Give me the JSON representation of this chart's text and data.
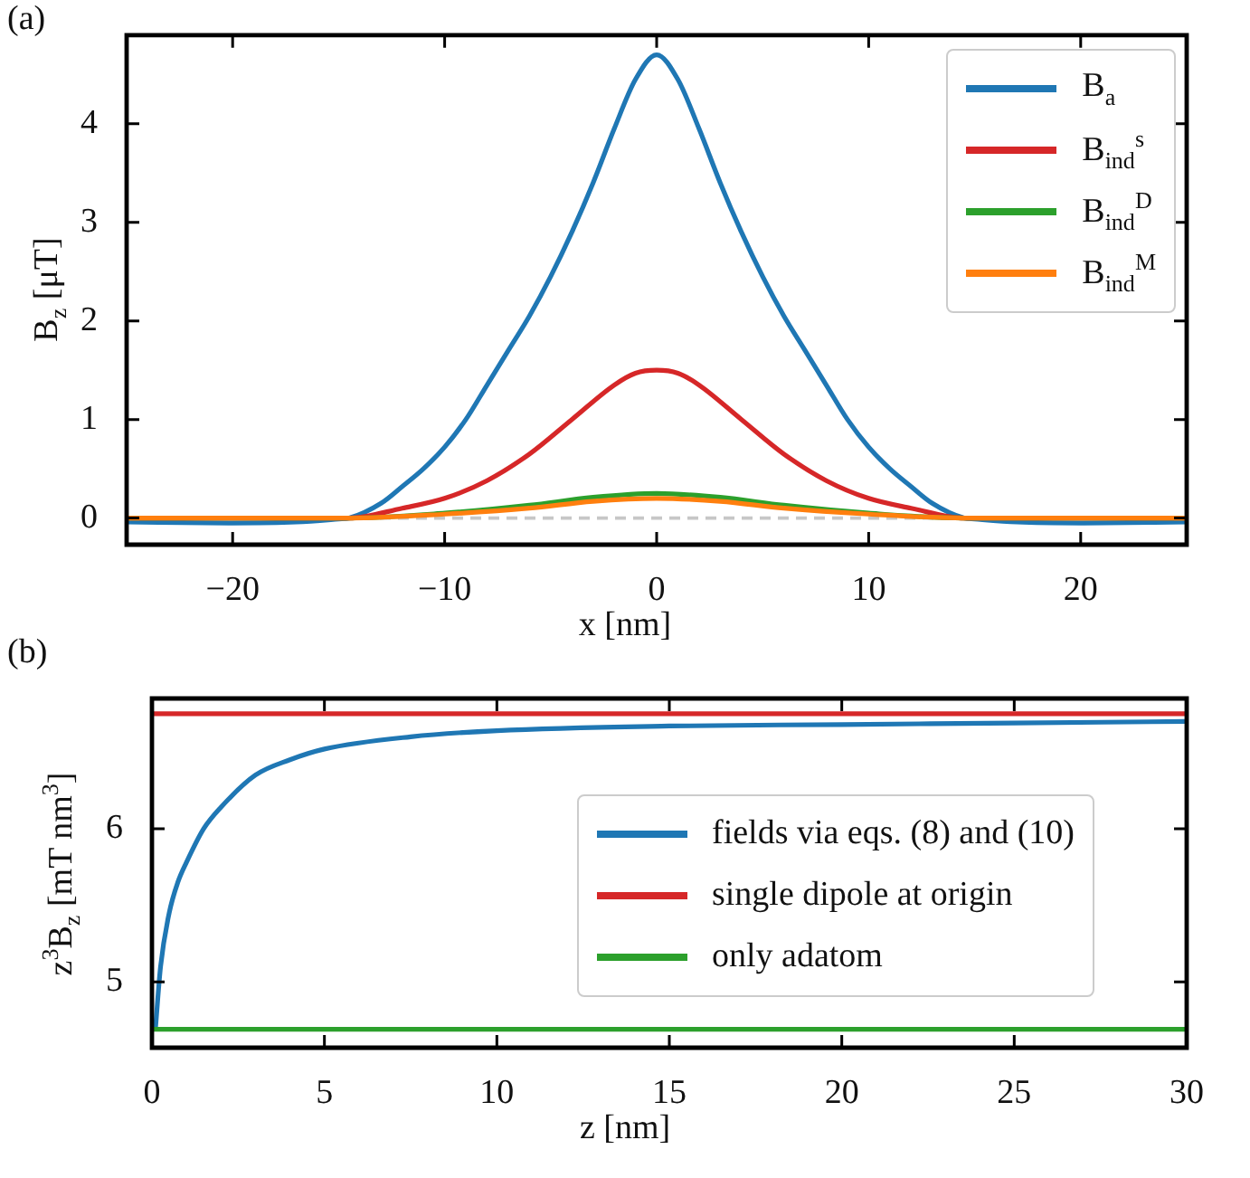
{
  "chart_data": [
    {
      "type": "line",
      "title": "(a)",
      "xlabel": "x [nm]",
      "ylabel": "B$_{z}$ [μT]",
      "xlim": [
        -25,
        25
      ],
      "ylim": [
        -0.27,
        4.9
      ],
      "xticks": [
        -20,
        -10,
        0,
        10,
        20
      ],
      "yticks": [
        0,
        1,
        2,
        3,
        4
      ],
      "legend": "top right",
      "ref_lines": [
        {
          "axis": "y",
          "value": 0,
          "color": "#c7c7c7",
          "line_style": "dashed"
        }
      ],
      "series": [
        {
          "name": "B$_{a}$",
          "color": "#1f77b4",
          "x": [
            -25,
            -20,
            -17,
            -15,
            -14.5,
            -13,
            -12,
            -11,
            -10,
            -9,
            -8,
            -7,
            -6,
            -5,
            -4,
            -3,
            -2,
            -1,
            0,
            1,
            2,
            3,
            4,
            5,
            6,
            7,
            8,
            9,
            10,
            11,
            12,
            13,
            14.5,
            15,
            17,
            20,
            25
          ],
          "values": [
            -0.04,
            -0.05,
            -0.04,
            -0.01,
            0,
            0.15,
            0.32,
            0.5,
            0.72,
            1.0,
            1.35,
            1.7,
            2.05,
            2.45,
            2.9,
            3.4,
            3.95,
            4.45,
            4.7,
            4.45,
            3.95,
            3.4,
            2.9,
            2.45,
            2.05,
            1.7,
            1.35,
            1.0,
            0.72,
            0.5,
            0.32,
            0.15,
            0,
            -0.01,
            -0.04,
            -0.05,
            -0.04
          ]
        },
        {
          "name": "B$_{ind}$$^{s}$",
          "color": "#d62728",
          "x": [
            -25,
            -14.5,
            -12,
            -10,
            -8,
            -6,
            -4,
            -2,
            -1,
            0,
            1,
            2,
            4,
            6,
            8,
            10,
            12,
            14.5,
            25
          ],
          "values": [
            0,
            0,
            0.1,
            0.2,
            0.38,
            0.65,
            1.0,
            1.35,
            1.47,
            1.5,
            1.47,
            1.35,
            1.0,
            0.65,
            0.38,
            0.2,
            0.1,
            0,
            0
          ]
        },
        {
          "name": "B$_{ind}$$^{D}$",
          "color": "#2ca02c",
          "x": [
            -25,
            -14.5,
            -10,
            -6,
            -3,
            0,
            3,
            6,
            10,
            14.5,
            25
          ],
          "values": [
            0,
            0,
            0.05,
            0.13,
            0.21,
            0.25,
            0.21,
            0.13,
            0.05,
            0,
            0
          ]
        },
        {
          "name": "B$_{ind}$$^{M}$",
          "color": "#ff7f0e",
          "x": [
            -25,
            -14.5,
            -10,
            -6,
            -3,
            0,
            3,
            6,
            10,
            14.5,
            25
          ],
          "values": [
            0,
            0,
            0.04,
            0.1,
            0.17,
            0.2,
            0.17,
            0.1,
            0.04,
            0,
            0
          ]
        }
      ]
    },
    {
      "type": "line",
      "title": "(b)",
      "xlabel": "z [nm]",
      "ylabel": "z$^{3}$B$_{z}$ [mT nm$^{3}$]",
      "xlim": [
        0,
        30
      ],
      "ylim": [
        4.57,
        6.85
      ],
      "xticks": [
        0,
        5,
        10,
        15,
        20,
        25,
        30
      ],
      "yticks": [
        5,
        6
      ],
      "legend": "right",
      "series": [
        {
          "name": "fields via eqs. (8) and (10)",
          "color": "#1f77b4",
          "x": [
            0.1,
            0.25,
            0.5,
            0.75,
            1,
            1.5,
            2,
            3,
            4,
            5,
            7.5,
            10,
            15,
            20,
            25,
            30
          ],
          "values": [
            4.69,
            5.1,
            5.45,
            5.65,
            5.78,
            6.0,
            6.14,
            6.35,
            6.45,
            6.52,
            6.6,
            6.64,
            6.67,
            6.68,
            6.69,
            6.7
          ]
        },
        {
          "name": "single dipole at origin",
          "color": "#d62728",
          "x": [
            0,
            30
          ],
          "values": [
            6.75,
            6.75
          ]
        },
        {
          "name": "only adatom",
          "color": "#2ca02c",
          "x": [
            0,
            30
          ],
          "values": [
            4.69,
            4.69
          ]
        }
      ]
    }
  ]
}
